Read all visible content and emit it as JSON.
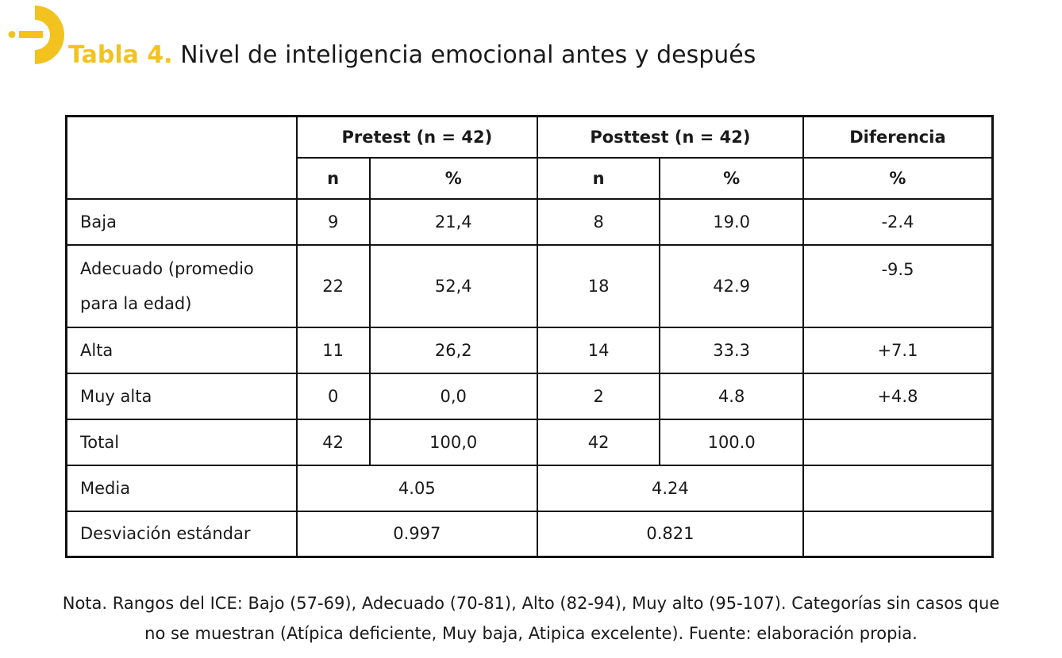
{
  "brand": {
    "logo_icon": "yellow-d-logo",
    "accent_color": "#f2c31f"
  },
  "title": {
    "label": "Tabla 4.",
    "text": "Nivel de inteligencia emocional antes y después"
  },
  "table": {
    "header": {
      "pretest": "Pretest (n = 42)",
      "posttest": "Posttest (n = 42)",
      "diferencia": "Diferencia",
      "n": "n",
      "pct": "%"
    },
    "rows": [
      {
        "label": "Baja",
        "pre_n": "9",
        "pre_pct": "21,4",
        "post_n": "8",
        "post_pct": "19.0",
        "diff": "-2.4"
      },
      {
        "label": "Adecuado (promedio para la edad)",
        "pre_n": "22",
        "pre_pct": "52,4",
        "post_n": "18",
        "post_pct": "42.9",
        "diff": "-9.5"
      },
      {
        "label": "Alta",
        "pre_n": "11",
        "pre_pct": "26,2",
        "post_n": "14",
        "post_pct": "33.3",
        "diff": "+7.1"
      },
      {
        "label": "Muy alta",
        "pre_n": "0",
        "pre_pct": "0,0",
        "post_n": "2",
        "post_pct": "4.8",
        "diff": "+4.8"
      },
      {
        "label": "Total",
        "pre_n": "42",
        "pre_pct": "100,0",
        "post_n": "42",
        "post_pct": "100.0",
        "diff": ""
      }
    ],
    "stats": [
      {
        "label": "Media",
        "pre": "4.05",
        "post": "4.24",
        "diff": ""
      },
      {
        "label": "Desviación estándar",
        "pre": "0.997",
        "post": "0.821",
        "diff": ""
      }
    ]
  },
  "note": {
    "line1": "Nota. Rangos del ICE: Bajo (57-69), Adecuado (70-81), Alto (82-94), Muy alto (95-107). Categorías sin casos que",
    "line2": "no se muestran (Atípica deficiente, Muy baja, Atipica excelente). Fuente: elaboración propia."
  }
}
